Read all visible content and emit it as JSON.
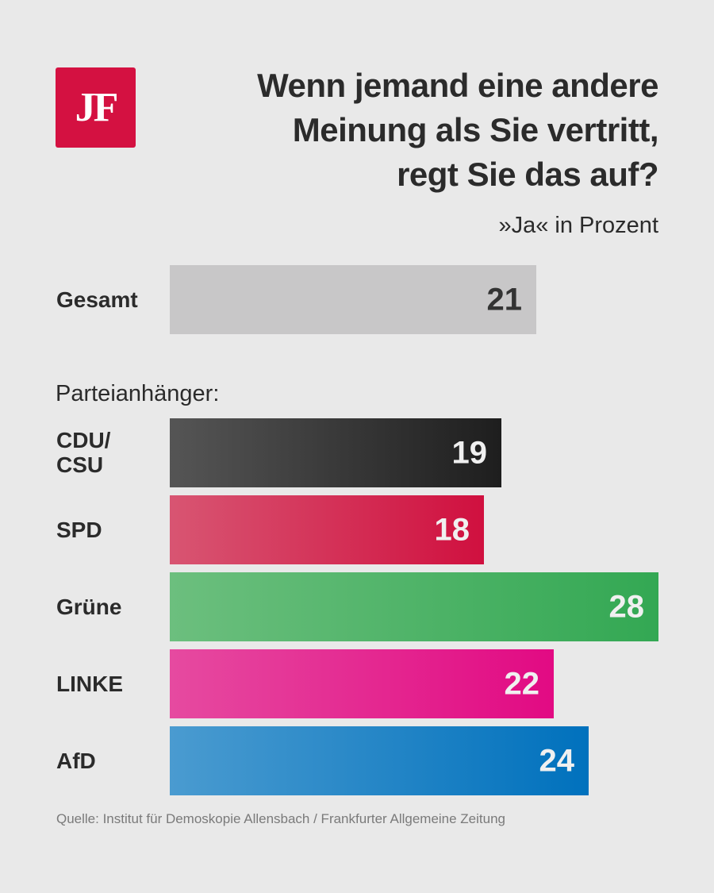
{
  "logo": {
    "text": "JF",
    "color": "#d41141"
  },
  "title": "Wenn jemand eine andere\nMeinung als Sie vertritt,\nregt Sie das auf?",
  "subtitle": "»Ja« in Prozent",
  "section_label": "Parteianhänger:",
  "source": "Quelle: Institut für Demoskopie Allensbach / Frankfurter Allgemeine Zeitung",
  "chart_data": {
    "type": "bar",
    "orientation": "horizontal",
    "title": "Wenn jemand eine andere Meinung als Sie vertritt, regt Sie das auf?",
    "subtitle": "»Ja« in Prozent",
    "xlabel": "",
    "ylabel": "",
    "xlim": [
      0,
      28
    ],
    "grid": false,
    "categories": [
      "Gesamt",
      "CDU/\nCSU",
      "SPD",
      "Grüne",
      "LINKE",
      "AfD"
    ],
    "values": [
      21,
      19,
      18,
      28,
      22,
      24
    ],
    "colors": [
      {
        "from": "#c8c7c8",
        "to": "#c8c7c8",
        "text": "#333333"
      },
      {
        "from": "#555555",
        "to": "#1e1e1e",
        "text": "#f0f0f0"
      },
      {
        "from": "#d85572",
        "to": "#d0103f",
        "text": "#f0f0f0"
      },
      {
        "from": "#6cbf7e",
        "to": "#33a853",
        "text": "#f0f0f0"
      },
      {
        "from": "#e64aa0",
        "to": "#e20a83",
        "text": "#f0f0f0"
      },
      {
        "from": "#4a9bd0",
        "to": "#0071bd",
        "text": "#f0f0f0"
      }
    ]
  }
}
